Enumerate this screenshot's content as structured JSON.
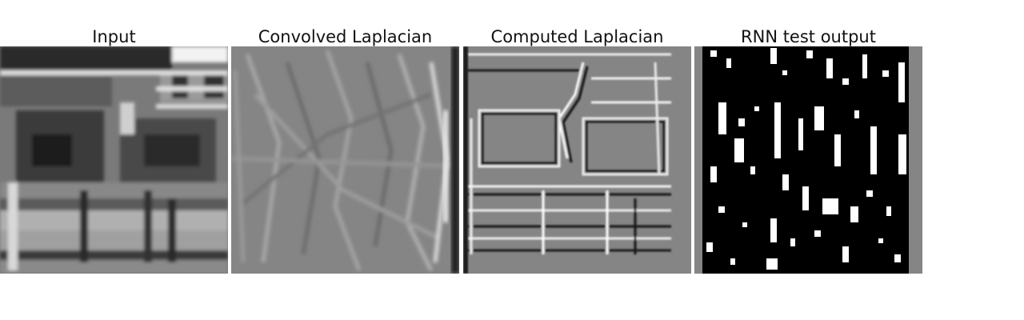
{
  "panels": [
    {
      "title": "Input"
    },
    {
      "title": "Convolved Laplacian"
    },
    {
      "title": "Computed Laplacian"
    },
    {
      "title": "RNN test output"
    }
  ],
  "colors": {
    "background": "#ffffff",
    "neutral_gray": "#808080",
    "black": "#000000",
    "white": "#ffffff"
  }
}
